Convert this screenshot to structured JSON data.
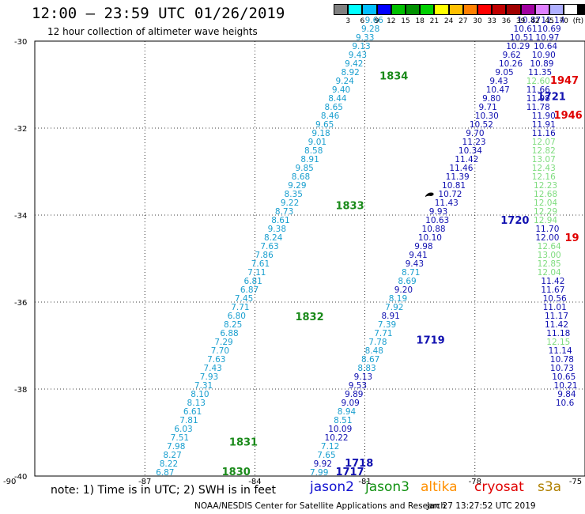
{
  "header": {
    "title": "12:00 – 23:59 UTC 01/26/2019",
    "subtitle": "12 hour collection of altimeter wave heights"
  },
  "colorbar": {
    "colors": [
      "#808080",
      "#00ffff",
      "#00bfff",
      "#0000ff",
      "#00c000",
      "#009000",
      "#00d000",
      "#ffff00",
      "#ffc000",
      "#ff8000",
      "#ff0000",
      "#c00000",
      "#a00000",
      "#a000a0",
      "#e080ff",
      "#b0b0ff",
      "#ffffff",
      "#000000"
    ],
    "labels": [
      "3",
      "6",
      "9",
      "12",
      "15",
      "18",
      "21",
      "24",
      "27",
      "30",
      "33",
      "36",
      "39",
      "42",
      "45",
      "70",
      "(ft)"
    ]
  },
  "chart_data": {
    "type": "scatter",
    "title": "12:00 – 23:59 UTC 01/26/2019",
    "xlim": [
      -90,
      -75
    ],
    "ylim": [
      -40,
      -30
    ],
    "xticks": [
      "-87",
      "-84",
      "-81",
      "-78",
      "-75"
    ],
    "yticks": [
      "-30",
      "-32",
      "-34",
      "-36",
      "-38",
      "-40"
    ],
    "corner_labels": {
      "left_bottom": "-90"
    },
    "grid": true,
    "tracks": [
      {
        "satellite": "jason2",
        "color": "#1a9fcf",
        "labels": [
          {
            "text": "1830",
            "x": -84.9,
            "y": -39.98,
            "color": "#1a8a1a"
          },
          {
            "text": "1831",
            "x": -84.7,
            "y": -39.3,
            "color": "#1a8a1a"
          },
          {
            "text": "1832",
            "x": -82.9,
            "y": -36.42,
            "color": "#1a8a1a"
          },
          {
            "text": "1833",
            "x": -81.8,
            "y": -33.86,
            "color": "#1a8a1a"
          },
          {
            "text": "1834",
            "x": -80.6,
            "y": -30.88,
            "color": "#1a8a1a"
          }
        ],
        "points": [
          {
            "x": -86.7,
            "y": -39.98,
            "v": "6.87"
          },
          {
            "x": -86.6,
            "y": -39.78,
            "v": "8.22"
          },
          {
            "x": -86.5,
            "y": -39.58,
            "v": "8.27"
          },
          {
            "x": -86.4,
            "y": -39.38,
            "v": "7.98"
          },
          {
            "x": -86.3,
            "y": -39.18,
            "v": "7.51"
          },
          {
            "x": -86.2,
            "y": -38.98,
            "v": "6.03"
          },
          {
            "x": -86.05,
            "y": -38.78,
            "v": "7.81"
          },
          {
            "x": -85.95,
            "y": -38.58,
            "v": "6.61"
          },
          {
            "x": -85.85,
            "y": -38.38,
            "v": "8.13"
          },
          {
            "x": -85.75,
            "y": -38.18,
            "v": "8.10"
          },
          {
            "x": -85.65,
            "y": -37.98,
            "v": "7.31"
          },
          {
            "x": -85.5,
            "y": -37.78,
            "v": "7.93"
          },
          {
            "x": -85.4,
            "y": -37.58,
            "v": "7.43"
          },
          {
            "x": -85.3,
            "y": -37.38,
            "v": "7.63"
          },
          {
            "x": -85.2,
            "y": -37.18,
            "v": "7.70"
          },
          {
            "x": -85.1,
            "y": -36.98,
            "v": "7.29"
          },
          {
            "x": -84.95,
            "y": -36.78,
            "v": "6.88"
          },
          {
            "x": -84.85,
            "y": -36.58,
            "v": "8.25"
          },
          {
            "x": -84.75,
            "y": -36.38,
            "v": "6.80"
          },
          {
            "x": -84.65,
            "y": -36.18,
            "v": "7.71"
          },
          {
            "x": -84.55,
            "y": -35.98,
            "v": "7.45"
          },
          {
            "x": -84.4,
            "y": -35.78,
            "v": "6.87"
          },
          {
            "x": -84.3,
            "y": -35.58,
            "v": "6.81"
          },
          {
            "x": -84.2,
            "y": -35.38,
            "v": "7.11"
          },
          {
            "x": -84.1,
            "y": -35.18,
            "v": "7.61"
          },
          {
            "x": -84.0,
            "y": -34.98,
            "v": "7.86"
          },
          {
            "x": -83.85,
            "y": -34.78,
            "v": "7.63"
          },
          {
            "x": -83.75,
            "y": -34.58,
            "v": "8.24"
          },
          {
            "x": -83.65,
            "y": -34.38,
            "v": "9.38"
          },
          {
            "x": -83.55,
            "y": -34.18,
            "v": "8.61"
          },
          {
            "x": -83.45,
            "y": -33.98,
            "v": "8.73"
          },
          {
            "x": -83.3,
            "y": -33.78,
            "v": "9.22"
          },
          {
            "x": -83.2,
            "y": -33.58,
            "v": "8.35"
          },
          {
            "x": -83.1,
            "y": -33.38,
            "v": "9.29"
          },
          {
            "x": -83.0,
            "y": -33.18,
            "v": "8.68"
          },
          {
            "x": -82.9,
            "y": -32.98,
            "v": "9.85"
          },
          {
            "x": -82.75,
            "y": -32.78,
            "v": "8.91"
          },
          {
            "x": -82.65,
            "y": -32.58,
            "v": "8.58"
          },
          {
            "x": -82.55,
            "y": -32.38,
            "v": "9.01"
          },
          {
            "x": -82.45,
            "y": -32.18,
            "v": "9.18"
          },
          {
            "x": -82.35,
            "y": -31.98,
            "v": "9.65"
          },
          {
            "x": -82.2,
            "y": -31.78,
            "v": "8.46"
          },
          {
            "x": -82.1,
            "y": -31.58,
            "v": "8.65"
          },
          {
            "x": -82.0,
            "y": -31.38,
            "v": "8.44"
          },
          {
            "x": -81.9,
            "y": -31.18,
            "v": "9.40"
          },
          {
            "x": -81.8,
            "y": -30.98,
            "v": "9.24"
          },
          {
            "x": -81.65,
            "y": -30.78,
            "v": "8.92"
          },
          {
            "x": -81.55,
            "y": -30.58,
            "v": "9.42"
          },
          {
            "x": -81.45,
            "y": -30.38,
            "v": "9.43"
          },
          {
            "x": -81.35,
            "y": -30.18,
            "v": "9.13"
          },
          {
            "x": -81.25,
            "y": -29.98,
            "v": "9.33"
          },
          {
            "x": -81.1,
            "y": -29.78,
            "v": "9.28"
          },
          {
            "x": -81.0,
            "y": -29.58,
            "v": "9.66"
          }
        ]
      },
      {
        "satellite": "jason2",
        "color": "#1010b0",
        "labels": [
          {
            "text": "1717",
            "x": -81.8,
            "y": -39.98,
            "color": "#1010b0"
          },
          {
            "text": "1718",
            "x": -81.55,
            "y": -39.78,
            "color": "#1010b0"
          },
          {
            "text": "1719",
            "x": -79.6,
            "y": -36.95,
            "color": "#1010b0"
          },
          {
            "text": "1720",
            "x": -77.3,
            "y": -34.2,
            "color": "#1010b0"
          },
          {
            "text": "1721",
            "x": -76.3,
            "y": -31.35,
            "color": "#1010b0"
          }
        ],
        "points": [
          {
            "x": -82.5,
            "y": -39.98,
            "v": "7.99",
            "c": "#1a9fcf"
          },
          {
            "x": -82.4,
            "y": -39.78,
            "v": "9.92"
          },
          {
            "x": -82.3,
            "y": -39.58,
            "v": "7.65",
            "c": "#1a9fcf"
          },
          {
            "x": -82.2,
            "y": -39.38,
            "v": "7.12",
            "c": "#1a9fcf"
          },
          {
            "x": -82.1,
            "y": -39.18,
            "v": "10.22"
          },
          {
            "x": -82.0,
            "y": -38.98,
            "v": "10.09"
          },
          {
            "x": -81.85,
            "y": -38.78,
            "v": "8.51",
            "c": "#1a9fcf"
          },
          {
            "x": -81.75,
            "y": -38.58,
            "v": "8.94",
            "c": "#1a9fcf"
          },
          {
            "x": -81.65,
            "y": -38.38,
            "v": "9.09"
          },
          {
            "x": -81.55,
            "y": -38.18,
            "v": "9.89"
          },
          {
            "x": -81.45,
            "y": -37.98,
            "v": "9.53"
          },
          {
            "x": -81.3,
            "y": -37.78,
            "v": "9.13"
          },
          {
            "x": -81.2,
            "y": -37.58,
            "v": "8.83",
            "c": "#1a9fcf"
          },
          {
            "x": -81.1,
            "y": -37.38,
            "v": "8.67",
            "c": "#1a9fcf"
          },
          {
            "x": -81.0,
            "y": -37.18,
            "v": "8.48",
            "c": "#1a9fcf"
          },
          {
            "x": -80.9,
            "y": -36.98,
            "v": "7.78",
            "c": "#1a9fcf"
          },
          {
            "x": -80.75,
            "y": -36.78,
            "v": "7.71",
            "c": "#1a9fcf"
          },
          {
            "x": -80.65,
            "y": -36.58,
            "v": "7.39",
            "c": "#1a9fcf"
          },
          {
            "x": -80.55,
            "y": -36.38,
            "v": "8.91"
          },
          {
            "x": -80.45,
            "y": -36.18,
            "v": "7.92",
            "c": "#1a9fcf"
          },
          {
            "x": -80.35,
            "y": -35.98,
            "v": "8.19",
            "c": "#1a9fcf"
          },
          {
            "x": -80.2,
            "y": -35.78,
            "v": "9.20"
          },
          {
            "x": -80.1,
            "y": -35.58,
            "v": "8.69",
            "c": "#1a9fcf"
          },
          {
            "x": -80.0,
            "y": -35.38,
            "v": "8.71",
            "c": "#1a9fcf"
          },
          {
            "x": -79.9,
            "y": -35.18,
            "v": "9.43"
          },
          {
            "x": -79.8,
            "y": -34.98,
            "v": "9.41"
          },
          {
            "x": -79.65,
            "y": -34.78,
            "v": "9.98"
          },
          {
            "x": -79.55,
            "y": -34.58,
            "v": "10.10"
          },
          {
            "x": -79.45,
            "y": -34.38,
            "v": "10.88"
          },
          {
            "x": -79.35,
            "y": -34.18,
            "v": "10.63"
          },
          {
            "x": -79.25,
            "y": -33.98,
            "v": "9.93"
          },
          {
            "x": -79.1,
            "y": -33.78,
            "v": "11.43"
          },
          {
            "x": -79.0,
            "y": -33.58,
            "v": "10.72"
          },
          {
            "x": -78.9,
            "y": -33.38,
            "v": "10.81"
          },
          {
            "x": -78.8,
            "y": -33.18,
            "v": "11.39"
          },
          {
            "x": -78.7,
            "y": -32.98,
            "v": "11.46"
          },
          {
            "x": -78.55,
            "y": -32.78,
            "v": "11.42"
          },
          {
            "x": -78.45,
            "y": -32.58,
            "v": "10.34"
          },
          {
            "x": -78.35,
            "y": -32.38,
            "v": "11.23"
          },
          {
            "x": -78.25,
            "y": -32.18,
            "v": "9.70"
          },
          {
            "x": -78.15,
            "y": -31.98,
            "v": "10.52"
          },
          {
            "x": -78.0,
            "y": -31.78,
            "v": "10.30"
          },
          {
            "x": -77.9,
            "y": -31.58,
            "v": "9.71"
          },
          {
            "x": -77.8,
            "y": -31.38,
            "v": "9.80"
          },
          {
            "x": -77.7,
            "y": -31.18,
            "v": "10.47"
          },
          {
            "x": -77.6,
            "y": -30.98,
            "v": "9.43"
          },
          {
            "x": -77.45,
            "y": -30.78,
            "v": "9.05"
          },
          {
            "x": -77.35,
            "y": -30.58,
            "v": "10.26"
          },
          {
            "x": -77.25,
            "y": -30.38,
            "v": "9.62"
          },
          {
            "x": -77.15,
            "y": -30.18,
            "v": "10.29"
          },
          {
            "x": -77.05,
            "y": -29.98,
            "v": "10.51"
          },
          {
            "x": -76.95,
            "y": -29.78,
            "v": "10.61"
          },
          {
            "x": -76.85,
            "y": -29.58,
            "v": "10.87"
          },
          {
            "x": -76.75,
            "y": -29.38,
            "v": "11.19"
          }
        ]
      },
      {
        "satellite": "jason3",
        "color": "#1010b0",
        "labels": [],
        "points": [
          {
            "x": -76.2,
            "y": -29.58,
            "v": "11.14"
          },
          {
            "x": -76.3,
            "y": -29.78,
            "v": "10.69"
          },
          {
            "x": -76.35,
            "y": -29.98,
            "v": "10.97"
          },
          {
            "x": -76.4,
            "y": -30.18,
            "v": "10.64"
          },
          {
            "x": -76.45,
            "y": -30.38,
            "v": "10.90"
          },
          {
            "x": -76.5,
            "y": -30.58,
            "v": "10.89"
          },
          {
            "x": -76.55,
            "y": -30.78,
            "v": "11.35"
          },
          {
            "x": -76.6,
            "y": -30.98,
            "v": "12.60",
            "c": "#7fdc7f"
          },
          {
            "x": -76.6,
            "y": -31.18,
            "v": "11.66"
          },
          {
            "x": -76.6,
            "y": -31.38,
            "v": "11.98"
          },
          {
            "x": -76.6,
            "y": -31.58,
            "v": "11.78"
          },
          {
            "x": -76.45,
            "y": -31.78,
            "v": "11.90"
          },
          {
            "x": -76.45,
            "y": -31.98,
            "v": "11.91"
          },
          {
            "x": -76.45,
            "y": -32.18,
            "v": "11.16"
          },
          {
            "x": -76.45,
            "y": -32.38,
            "v": "12.07",
            "c": "#7fdc7f"
          },
          {
            "x": -76.45,
            "y": -32.58,
            "v": "12.82",
            "c": "#7fdc7f"
          },
          {
            "x": -76.45,
            "y": -32.78,
            "v": "13.07",
            "c": "#7fdc7f"
          },
          {
            "x": -76.45,
            "y": -32.98,
            "v": "12.43",
            "c": "#7fdc7f"
          },
          {
            "x": -76.45,
            "y": -33.18,
            "v": "12.16",
            "c": "#7fdc7f"
          },
          {
            "x": -76.4,
            "y": -33.38,
            "v": "12.23",
            "c": "#7fdc7f"
          },
          {
            "x": -76.4,
            "y": -33.58,
            "v": "12.68",
            "c": "#7fdc7f"
          },
          {
            "x": -76.4,
            "y": -33.78,
            "v": "12.04",
            "c": "#7fdc7f"
          },
          {
            "x": -76.4,
            "y": -33.98,
            "v": "12.29",
            "c": "#7fdc7f"
          },
          {
            "x": -76.4,
            "y": -34.18,
            "v": "12.94",
            "c": "#7fdc7f"
          },
          {
            "x": -76.35,
            "y": -34.38,
            "v": "11.70"
          },
          {
            "x": -76.35,
            "y": -34.58,
            "v": "12.00"
          },
          {
            "x": -76.3,
            "y": -34.78,
            "v": "12.64",
            "c": "#7fdc7f"
          },
          {
            "x": -76.3,
            "y": -34.98,
            "v": "13.00",
            "c": "#7fdc7f"
          },
          {
            "x": -76.3,
            "y": -35.18,
            "v": "12.85",
            "c": "#7fdc7f"
          },
          {
            "x": -76.3,
            "y": -35.38,
            "v": "12.04",
            "c": "#7fdc7f"
          },
          {
            "x": -76.2,
            "y": -35.58,
            "v": "11.42"
          },
          {
            "x": -76.2,
            "y": -35.78,
            "v": "11.67"
          },
          {
            "x": -76.15,
            "y": -35.98,
            "v": "10.56"
          },
          {
            "x": -76.15,
            "y": -36.18,
            "v": "11.01"
          },
          {
            "x": -76.1,
            "y": -36.38,
            "v": "11.17"
          },
          {
            "x": -76.1,
            "y": -36.58,
            "v": "11.42"
          },
          {
            "x": -76.05,
            "y": -36.78,
            "v": "11.18"
          },
          {
            "x": -76.05,
            "y": -36.98,
            "v": "12.15",
            "c": "#7fdc7f"
          },
          {
            "x": -76.0,
            "y": -37.18,
            "v": "11.14"
          },
          {
            "x": -75.95,
            "y": -37.38,
            "v": "10.78"
          },
          {
            "x": -75.95,
            "y": -37.58,
            "v": "10.73"
          },
          {
            "x": -75.9,
            "y": -37.78,
            "v": "10.65"
          },
          {
            "x": -75.85,
            "y": -37.98,
            "v": "10.21"
          },
          {
            "x": -75.75,
            "y": -38.18,
            "v": "9.84"
          },
          {
            "x": -75.8,
            "y": -38.38,
            "v": "10.6"
          }
        ]
      },
      {
        "satellite": "cryosat",
        "color": "#e00000",
        "labels": [
          {
            "text": "1947",
            "x": -75.95,
            "y": -30.98,
            "color": "#e00000"
          },
          {
            "text": "1946",
            "x": -75.85,
            "y": -31.78,
            "color": "#e00000"
          },
          {
            "text": "19",
            "x": -75.55,
            "y": -34.6,
            "color": "#e00000"
          }
        ],
        "points": []
      }
    ]
  },
  "legend": {
    "note": "note:  1) Time is in UTC;  2) SWH is in feet",
    "satellites": [
      {
        "name": "jason2",
        "color": "#1010d0"
      },
      {
        "name": "jason3",
        "color": "#109010"
      },
      {
        "name": "altika",
        "color": "#ff9000"
      },
      {
        "name": "cryosat",
        "color": "#e00000"
      },
      {
        "name": "s3a",
        "color": "#b08000"
      }
    ]
  },
  "footer": {
    "credit": "NOAA/NESDIS Center for Satellite Applications and Research",
    "timestamp": "Jan 27 13:27:52 UTC 2019"
  }
}
